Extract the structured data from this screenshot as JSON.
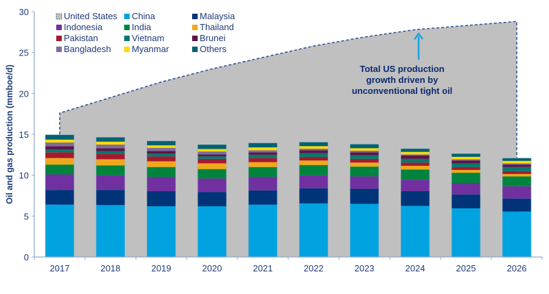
{
  "chart_data": {
    "type": "bar",
    "stacked": true,
    "title": "",
    "xlabel": "",
    "ylabel": "Oil and gas production (mmboe/d)",
    "ylim": [
      0,
      30
    ],
    "yticks": [
      0,
      5,
      10,
      15,
      20,
      25,
      30
    ],
    "grid": false,
    "legend_position": "top-left",
    "categories": [
      "2017",
      "2018",
      "2019",
      "2020",
      "2021",
      "2022",
      "2023",
      "2024",
      "2025",
      "2026"
    ],
    "area_series": {
      "name": "United States",
      "color": "#c0c0c0",
      "line_color": "#2f5597",
      "values": [
        17.6,
        19.5,
        21.4,
        23.0,
        24.4,
        25.8,
        26.9,
        27.8,
        28.3,
        28.8
      ]
    },
    "series": [
      {
        "name": "China",
        "color": "#00a3e0",
        "values": [
          6.4,
          6.35,
          6.2,
          6.2,
          6.4,
          6.55,
          6.5,
          6.25,
          5.95,
          5.55
        ]
      },
      {
        "name": "Malaysia",
        "color": "#003478",
        "values": [
          1.8,
          1.85,
          1.85,
          1.75,
          1.75,
          1.85,
          1.85,
          1.8,
          1.7,
          1.6
        ]
      },
      {
        "name": "Indonesia",
        "color": "#7030a0",
        "values": [
          1.9,
          1.8,
          1.75,
          1.65,
          1.65,
          1.6,
          1.5,
          1.4,
          1.4,
          1.5
        ]
      },
      {
        "name": "India",
        "color": "#00843d",
        "values": [
          1.2,
          1.2,
          1.2,
          1.15,
          1.2,
          1.25,
          1.2,
          1.25,
          1.25,
          1.2
        ]
      },
      {
        "name": "Thailand",
        "color": "#efa81c",
        "values": [
          0.8,
          0.75,
          0.7,
          0.7,
          0.6,
          0.55,
          0.5,
          0.45,
          0.35,
          0.3
        ]
      },
      {
        "name": "Pakistan",
        "color": "#a6192e",
        "values": [
          0.7,
          0.65,
          0.6,
          0.55,
          0.5,
          0.45,
          0.45,
          0.4,
          0.35,
          0.35
        ]
      },
      {
        "name": "Vietnam",
        "color": "#007a6e",
        "values": [
          0.35,
          0.35,
          0.35,
          0.3,
          0.4,
          0.45,
          0.45,
          0.45,
          0.45,
          0.5
        ]
      },
      {
        "name": "Brunei",
        "color": "#5b1648",
        "values": [
          0.4,
          0.35,
          0.3,
          0.25,
          0.3,
          0.35,
          0.35,
          0.4,
          0.35,
          0.3
        ]
      },
      {
        "name": "Bangladesh",
        "color": "#7f6c9c",
        "values": [
          0.45,
          0.45,
          0.4,
          0.35,
          0.25,
          0.2,
          0.2,
          0.15,
          0.15,
          0.15
        ]
      },
      {
        "name": "Myanmar",
        "color": "#ffdc00",
        "values": [
          0.35,
          0.35,
          0.3,
          0.3,
          0.35,
          0.3,
          0.3,
          0.3,
          0.3,
          0.3
        ]
      },
      {
        "name": "Others",
        "color": "#006272",
        "values": [
          0.6,
          0.55,
          0.55,
          0.55,
          0.55,
          0.5,
          0.5,
          0.4,
          0.4,
          0.35
        ]
      }
    ],
    "annotation": {
      "lines": [
        "Total US production",
        "growth driven by",
        "unconventional tight oil"
      ],
      "arrow_color": "#1aa3e0",
      "arrow_x_category": "2024"
    },
    "legend": [
      {
        "name": "United States",
        "color": "#c0c0c0",
        "style": "area"
      },
      {
        "name": "China",
        "color": "#00a3e0"
      },
      {
        "name": "Malaysia",
        "color": "#003478"
      },
      {
        "name": "Indonesia",
        "color": "#7030a0"
      },
      {
        "name": "India",
        "color": "#00843d"
      },
      {
        "name": "Thailand",
        "color": "#efa81c"
      },
      {
        "name": "Pakistan",
        "color": "#a6192e"
      },
      {
        "name": "Vietnam",
        "color": "#007a6e"
      },
      {
        "name": "Brunei",
        "color": "#5b1648"
      },
      {
        "name": "Bangladesh",
        "color": "#7f6c9c"
      },
      {
        "name": "Myanmar",
        "color": "#ffdc00"
      },
      {
        "name": "Others",
        "color": "#006272"
      }
    ],
    "axis_color": "#8ea9c8",
    "text_color": "#1f3a78"
  }
}
